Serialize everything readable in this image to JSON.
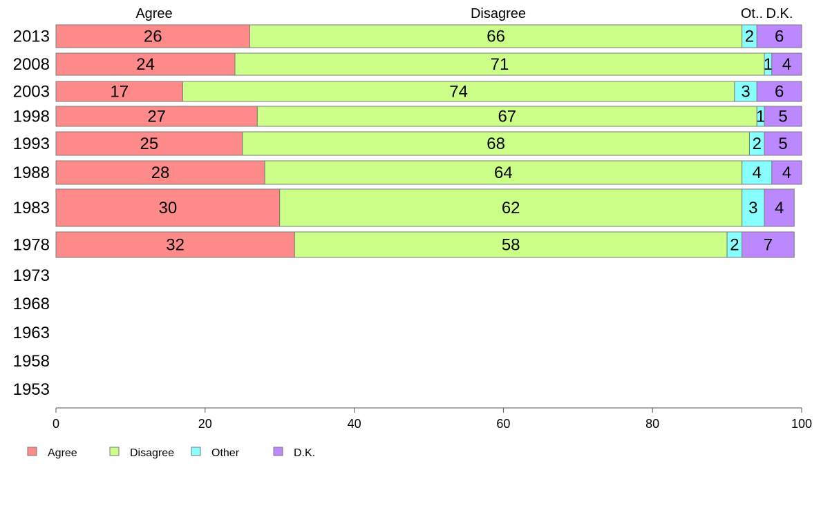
{
  "chart_data": {
    "type": "bar",
    "orientation": "horizontal",
    "stacked": true,
    "categories": [
      "2013",
      "2008",
      "2003",
      "1998",
      "1993",
      "1988",
      "1983",
      "1978",
      "1973",
      "1968",
      "1963",
      "1958",
      "1953"
    ],
    "series": [
      {
        "name": "Agree",
        "color": "#ff8a8a",
        "values": [
          26,
          24,
          17,
          27,
          25,
          28,
          30,
          32,
          null,
          null,
          null,
          null,
          null
        ]
      },
      {
        "name": "Disagree",
        "color": "#ccff88",
        "values": [
          66,
          71,
          74,
          67,
          68,
          64,
          62,
          58,
          null,
          null,
          null,
          null,
          null
        ]
      },
      {
        "name": "Other",
        "color": "#88ffff",
        "values": [
          2,
          1,
          3,
          1,
          2,
          4,
          3,
          2,
          null,
          null,
          null,
          null,
          null
        ]
      },
      {
        "name": "D.K.",
        "color": "#bb88ff",
        "values": [
          6,
          4,
          6,
          5,
          5,
          4,
          4,
          7,
          null,
          null,
          null,
          null,
          null
        ]
      }
    ],
    "column_headers": [
      "Agree",
      "Disagree",
      "Ot..",
      "D.K."
    ],
    "xticks": [
      "0",
      "20",
      "40",
      "60",
      "80",
      "100"
    ],
    "xlim": [
      0,
      100
    ],
    "legend": [
      "Agree",
      "Disagree",
      "Other",
      "D.K."
    ],
    "legend_position": "bottom-left",
    "grid": false
  }
}
